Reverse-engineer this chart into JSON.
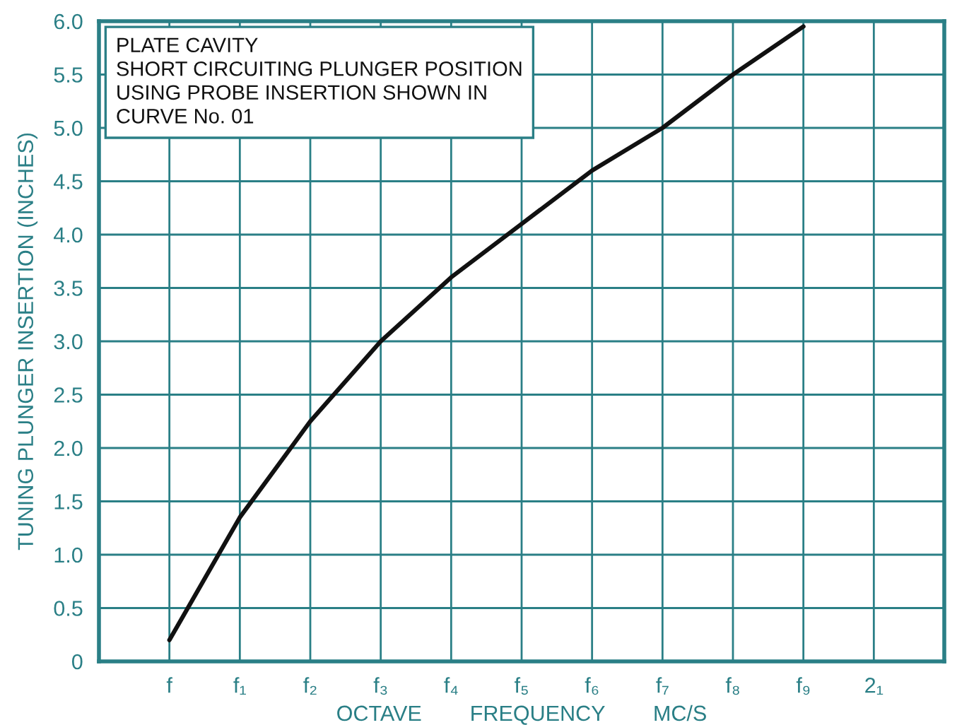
{
  "chart_data": {
    "type": "line",
    "xlabel": "OCTAVE        FREQUENCY        MC/S",
    "ylabel": "TUNING PLUNGER INSERTION (INCHES)",
    "annotations": [
      "PLATE CAVITY",
      "SHORT CIRCUITING PLUNGER POSITION",
      "USING PROBE INSERTION SHOWN IN",
      "CURVE No. 01"
    ],
    "categories": [
      "f",
      "f₁",
      "f₂",
      "f₃",
      "f₄",
      "f₅",
      "f₆",
      "f₇",
      "f₈",
      "f₉",
      "2₁"
    ],
    "ylim": [
      0,
      6
    ],
    "yticks": [
      0,
      {
        "value": 0.5,
        "label": "0.5"
      },
      {
        "value": 1,
        "label": "1.0"
      },
      {
        "value": 1.5,
        "label": "1.5"
      },
      {
        "value": 2,
        "label": "2.0"
      },
      {
        "value": 2.5,
        "label": "2.5"
      },
      {
        "value": 3,
        "label": "3.0"
      },
      {
        "value": 3.5,
        "label": "3.5"
      },
      {
        "value": 4,
        "label": "4.0"
      },
      {
        "value": 4.5,
        "label": "4.5"
      },
      {
        "value": 5,
        "label": "5.0"
      },
      {
        "value": 5.5,
        "label": "5.5"
      },
      {
        "value": 6,
        "label": "6.0"
      }
    ],
    "grid": true,
    "marker": "none",
    "line_style": "solid",
    "series": [
      {
        "color": "#111111",
        "values": [
          0.2,
          1.35,
          2.25,
          3.0,
          3.6,
          4.1,
          4.6,
          5.0,
          5.5,
          5.95,
          null
        ]
      }
    ]
  }
}
